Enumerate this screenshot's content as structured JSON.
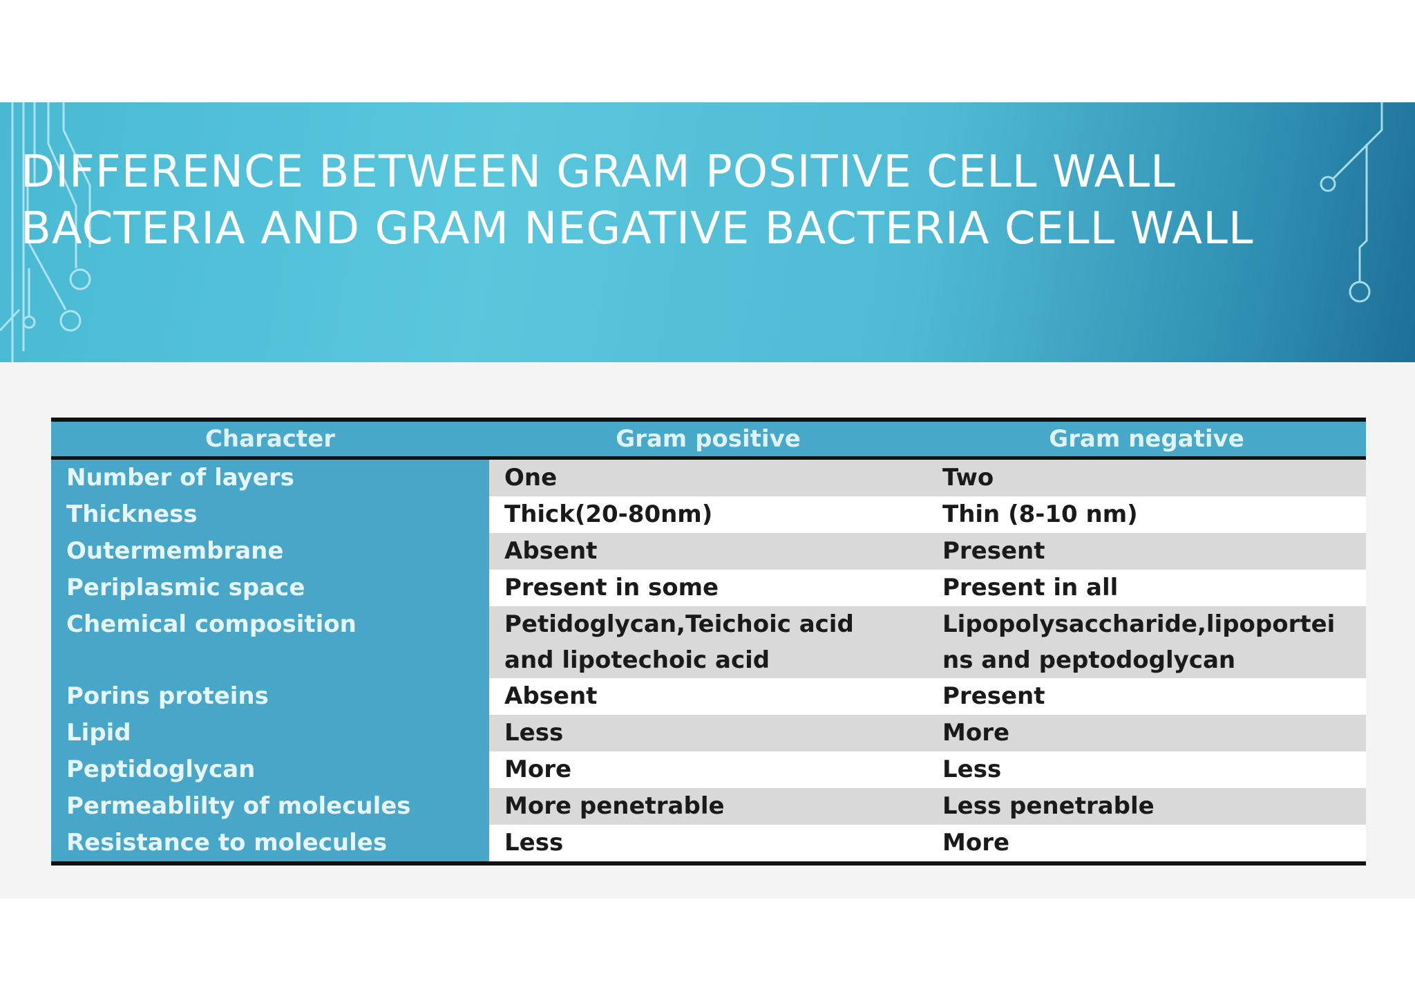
{
  "slide": {
    "title": "Difference between gram positive cell wall bacteria and gram negative bacteria cell wall"
  },
  "table": {
    "headers": [
      "Character",
      "Gram positive",
      "Gram negative"
    ],
    "rows": [
      [
        "Number of layers",
        "One",
        "Two"
      ],
      [
        "Thickness",
        "Thick(20-80nm)",
        "Thin (8-10 nm)"
      ],
      [
        "Outermembrane",
        "Absent",
        "Present"
      ],
      [
        "Periplasmic space",
        "Present in some",
        "Present in all"
      ],
      [
        "Chemical composition",
        "Petidoglycan,Teichoic acid\nand lipotechoic acid",
        "Lipopolysaccharide,lipoportei\nns and peptodoglycan"
      ],
      [
        "Porins proteins",
        "Absent",
        "Present"
      ],
      [
        "Lipid",
        "Less",
        "More"
      ],
      [
        "Peptidoglycan",
        "More",
        "Less"
      ],
      [
        "Permeablilty of molecules",
        "More penetrable",
        "Less penetrable"
      ],
      [
        "Resistance to molecules",
        "Less",
        "More"
      ]
    ]
  },
  "colors": {
    "banner": "#4fbad4",
    "table_header": "#47a8c9",
    "character_column": "#48a7c8",
    "row_shade": "#d9d9d9",
    "border": "#111111"
  }
}
